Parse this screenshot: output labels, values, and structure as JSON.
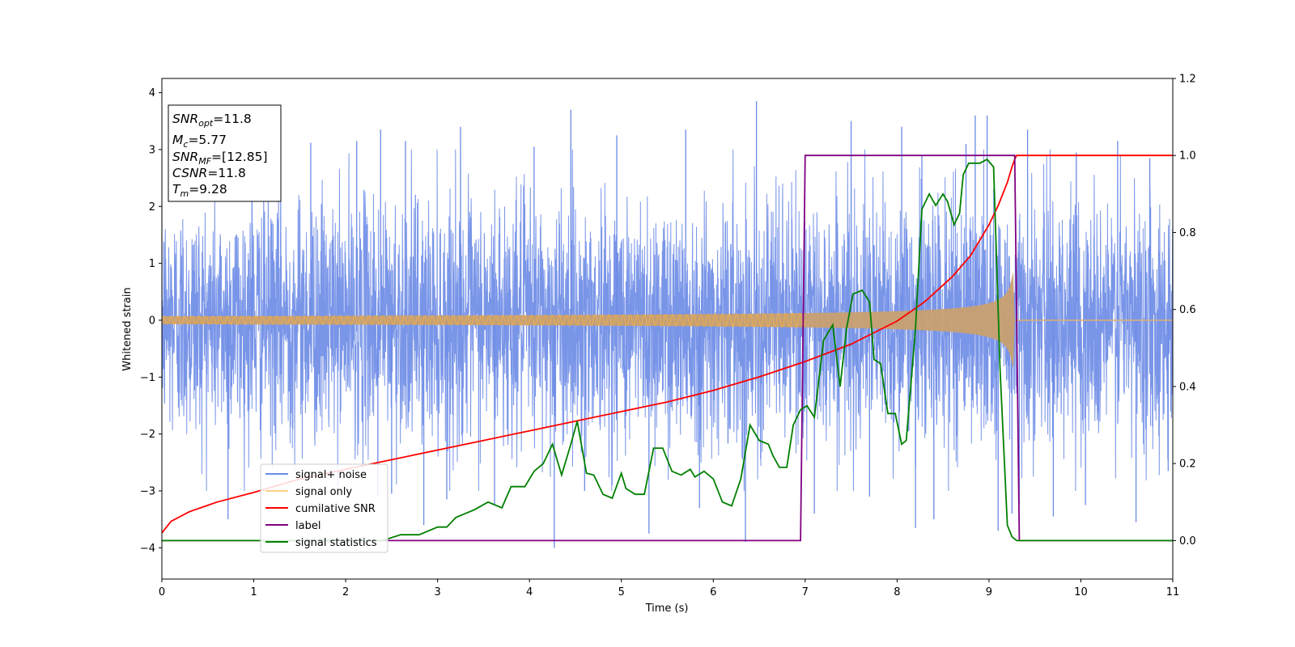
{
  "chart_data": {
    "type": "line",
    "title": "",
    "xlabel": "Time (s)",
    "ylabel": "Whitened strain",
    "xlim": [
      0,
      11
    ],
    "ylim": [
      -4.55,
      4.25
    ],
    "y2lim": [
      -0.1,
      1.2
    ],
    "x_ticks": [
      0,
      1,
      2,
      3,
      4,
      5,
      6,
      7,
      8,
      9,
      10,
      11
    ],
    "x_tick_labels": [
      "0",
      "1",
      "2",
      "3",
      "4",
      "5",
      "6",
      "7",
      "8",
      "9",
      "10",
      "11"
    ],
    "y_ticks": [
      4,
      3,
      2,
      1,
      0,
      -1,
      -2,
      -3,
      -4
    ],
    "y_tick_labels": [
      "4",
      "3",
      "2",
      "1",
      "0",
      "−1",
      "−2",
      "−3",
      "−4"
    ],
    "y2_ticks": [
      1.2,
      1.0,
      0.8,
      0.6,
      0.4,
      0.2,
      0.0
    ],
    "y2_tick_labels": [
      "1.2",
      "1.0",
      "0.8",
      "0.6",
      "0.4",
      "0.2",
      "0.0"
    ],
    "grid": false,
    "legend_position": "lower-left",
    "merger_time": 9.28,
    "noise_sigma": 1.05,
    "noise_peaks": [
      [
        0.72,
        -3.5
      ],
      [
        0.98,
        3.15
      ],
      [
        1.62,
        3.12
      ],
      [
        2.12,
        3.15
      ],
      [
        2.35,
        -3.1
      ],
      [
        2.38,
        3.35
      ],
      [
        2.5,
        -3.05
      ],
      [
        2.65,
        3.15
      ],
      [
        2.85,
        -3.6
      ],
      [
        3.1,
        -3.15
      ],
      [
        3.25,
        3.4
      ],
      [
        3.62,
        -3.25
      ],
      [
        4.05,
        3.05
      ],
      [
        4.27,
        -4.0
      ],
      [
        4.45,
        3.7
      ],
      [
        4.6,
        -3.0
      ],
      [
        4.95,
        3.25
      ],
      [
        5.3,
        -3.75
      ],
      [
        5.7,
        3.35
      ],
      [
        5.85,
        -3.3
      ],
      [
        6.35,
        -3.9
      ],
      [
        6.47,
        3.85
      ],
      [
        7.1,
        -3.4
      ],
      [
        7.5,
        3.5
      ],
      [
        7.7,
        -3.1
      ],
      [
        8.05,
        3.4
      ],
      [
        8.2,
        -3.65
      ],
      [
        8.27,
        2.9
      ],
      [
        8.4,
        -3.5
      ],
      [
        8.75,
        3.1
      ],
      [
        8.85,
        3.6
      ],
      [
        8.98,
        3.6
      ],
      [
        9.1,
        -3.7
      ],
      [
        9.25,
        -3.4
      ],
      [
        9.33,
        -3.25
      ],
      [
        9.42,
        3.35
      ],
      [
        9.7,
        -3.45
      ],
      [
        9.95,
        2.95
      ],
      [
        10.05,
        -3.25
      ],
      [
        10.4,
        3.15
      ],
      [
        10.6,
        -3.55
      ],
      [
        10.75,
        2.85
      ],
      [
        10.95,
        -2.65
      ]
    ],
    "series": [
      {
        "name": "signal+ noise",
        "color": "#6a8ae6",
        "axis": "left",
        "kind": "noise"
      },
      {
        "name": "signal only",
        "color": "#f5b041",
        "axis": "left",
        "kind": "chirp",
        "amp_start": 0.07,
        "amp_at_9": 0.3,
        "amp_peak": 0.85
      },
      {
        "name": "cumilative SNR",
        "color": "#ff0000",
        "axis": "right",
        "x": [
          0,
          0.1,
          0.3,
          0.6,
          1,
          1.5,
          2,
          2.5,
          3,
          3.5,
          4,
          4.5,
          5,
          5.5,
          6,
          6.5,
          7,
          7.5,
          8,
          8.3,
          8.6,
          8.8,
          9,
          9.1,
          9.2,
          9.25,
          9.28,
          9.3,
          11
        ],
        "y": [
          0.02,
          0.05,
          0.075,
          0.1,
          0.125,
          0.16,
          0.185,
          0.21,
          0.235,
          0.26,
          0.285,
          0.31,
          0.335,
          0.36,
          0.39,
          0.425,
          0.465,
          0.51,
          0.57,
          0.62,
          0.685,
          0.74,
          0.82,
          0.87,
          0.93,
          0.97,
          0.99,
          1.0,
          1.0
        ]
      },
      {
        "name": "label",
        "color": "#800080",
        "axis": "right",
        "x": [
          0,
          6.95,
          7.0,
          9.28,
          9.33,
          11
        ],
        "y": [
          0,
          0,
          1,
          1,
          0,
          0
        ]
      },
      {
        "name": "signal statistics",
        "color": "#008000",
        "axis": "right",
        "x": [
          0,
          0.5,
          1,
          1.5,
          2,
          2.4,
          2.6,
          2.8,
          3.0,
          3.1,
          3.2,
          3.4,
          3.55,
          3.7,
          3.8,
          3.85,
          3.95,
          4.05,
          4.15,
          4.25,
          4.35,
          4.45,
          4.52,
          4.62,
          4.7,
          4.8,
          4.9,
          5.0,
          5.05,
          5.15,
          5.25,
          5.35,
          5.45,
          5.55,
          5.65,
          5.75,
          5.8,
          5.9,
          6.0,
          6.1,
          6.2,
          6.3,
          6.4,
          6.5,
          6.6,
          6.65,
          6.72,
          6.8,
          6.87,
          6.95,
          7.02,
          7.1,
          7.2,
          7.3,
          7.38,
          7.45,
          7.52,
          7.62,
          7.7,
          7.75,
          7.82,
          7.9,
          7.98,
          8.05,
          8.1,
          8.2,
          8.27,
          8.35,
          8.42,
          8.5,
          8.55,
          8.62,
          8.68,
          8.72,
          8.78,
          8.82,
          8.9,
          8.98,
          9.05,
          9.12,
          9.2,
          9.25,
          9.3,
          11
        ],
        "y": [
          0.0,
          0.0,
          0.0,
          0.0,
          0.0,
          0.0,
          0.015,
          0.015,
          0.035,
          0.035,
          0.06,
          0.08,
          0.1,
          0.085,
          0.14,
          0.14,
          0.14,
          0.18,
          0.2,
          0.25,
          0.17,
          0.25,
          0.31,
          0.175,
          0.17,
          0.12,
          0.11,
          0.175,
          0.135,
          0.12,
          0.12,
          0.24,
          0.24,
          0.18,
          0.17,
          0.185,
          0.165,
          0.18,
          0.16,
          0.1,
          0.09,
          0.16,
          0.3,
          0.26,
          0.25,
          0.22,
          0.19,
          0.19,
          0.3,
          0.34,
          0.35,
          0.32,
          0.52,
          0.56,
          0.4,
          0.55,
          0.64,
          0.65,
          0.62,
          0.47,
          0.46,
          0.33,
          0.33,
          0.25,
          0.26,
          0.55,
          0.86,
          0.9,
          0.87,
          0.9,
          0.88,
          0.82,
          0.85,
          0.95,
          0.98,
          0.98,
          0.98,
          0.99,
          0.97,
          0.45,
          0.04,
          0.01,
          0.0,
          0.0
        ]
      }
    ]
  },
  "legend": [
    {
      "label": "signal+ noise",
      "color": "#6a8ae6"
    },
    {
      "label": "signal only",
      "color": "#fdd08a"
    },
    {
      "label": "cumilative SNR",
      "color": "#ff0000"
    },
    {
      "label": "label",
      "color": "#800080"
    },
    {
      "label": "signal statistics",
      "color": "#008000"
    }
  ],
  "info_box": {
    "snr_opt": {
      "base": "SNR",
      "sub": "opt",
      "value": "=11.8"
    },
    "mc": {
      "base": "M",
      "sub": "c",
      "value": "=5.77"
    },
    "snr_mf": {
      "base": "SNR",
      "sub": "MF",
      "value": "=[12.85]"
    },
    "csnr": {
      "base": "CSNR",
      "sub": "",
      "value": "=11.8"
    },
    "tm": {
      "base": "T",
      "sub": "m",
      "value": "=9.28"
    }
  }
}
